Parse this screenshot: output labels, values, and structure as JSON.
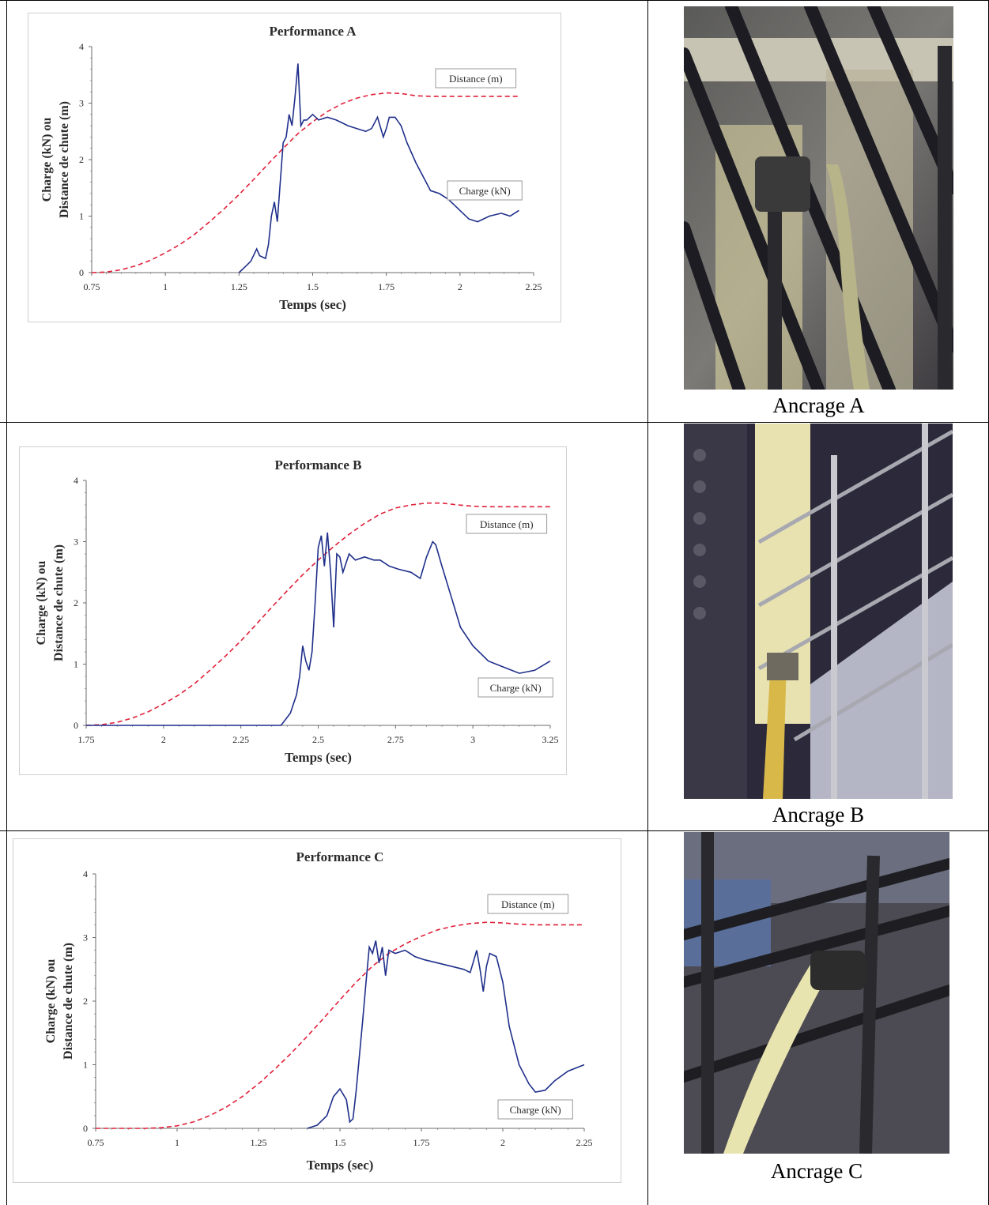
{
  "colors": {
    "charge": "#1f2f8a",
    "distance": "#e0203a",
    "axis": "#6b6b6b",
    "text": "#2a2a2a"
  },
  "photos": [
    {
      "caption": "Ancrage A"
    },
    {
      "caption": "Ancrage B"
    },
    {
      "caption": "Ancrage C"
    }
  ],
  "chart_data": [
    {
      "type": "line",
      "title": "Performance A",
      "xlabel": "Temps (sec)",
      "ylabel": [
        "Charge (kN) ou",
        "Distance de chute (m)"
      ],
      "xlim": [
        0.75,
        2.25
      ],
      "ylim": [
        0,
        4
      ],
      "xticks": [
        0.75,
        1,
        1.25,
        1.5,
        1.75,
        2,
        2.25
      ],
      "xticklabels": [
        "0.75",
        "1",
        "1.25",
        "1.5",
        "1.75",
        "2",
        "2.25"
      ],
      "yticks": [
        0,
        1,
        2,
        3,
        4
      ],
      "yticklabels": [
        "0",
        "1",
        "2",
        "3",
        "4"
      ],
      "legend_labels": [
        "Distance (m)",
        "Charge (kN)"
      ],
      "series": [
        {
          "name": "Distance (m)",
          "style": "dashed",
          "x": [
            0.75,
            0.8,
            0.85,
            0.9,
            0.95,
            1.0,
            1.05,
            1.1,
            1.15,
            1.2,
            1.25,
            1.3,
            1.35,
            1.4,
            1.45,
            1.5,
            1.55,
            1.6,
            1.65,
            1.7,
            1.75,
            1.8,
            1.85,
            1.9,
            1.95,
            2.0,
            2.05,
            2.1,
            2.15,
            2.2
          ],
          "y": [
            0,
            0.01,
            0.05,
            0.12,
            0.22,
            0.35,
            0.5,
            0.68,
            0.9,
            1.13,
            1.38,
            1.65,
            1.93,
            2.2,
            2.46,
            2.67,
            2.85,
            2.99,
            3.09,
            3.15,
            3.18,
            3.17,
            3.13,
            3.12,
            3.12,
            3.12,
            3.12,
            3.12,
            3.12,
            3.12
          ]
        },
        {
          "name": "Charge (kN)",
          "style": "solid",
          "x": [
            1.25,
            1.27,
            1.29,
            1.31,
            1.32,
            1.34,
            1.35,
            1.36,
            1.37,
            1.38,
            1.39,
            1.4,
            1.41,
            1.42,
            1.43,
            1.44,
            1.45,
            1.46,
            1.47,
            1.48,
            1.5,
            1.52,
            1.55,
            1.58,
            1.6,
            1.62,
            1.65,
            1.68,
            1.7,
            1.72,
            1.74,
            1.75,
            1.76,
            1.78,
            1.8,
            1.82,
            1.85,
            1.88,
            1.9,
            1.93,
            1.96,
            1.98,
            2.0,
            2.03,
            2.06,
            2.1,
            2.14,
            2.17,
            2.2
          ],
          "y": [
            0,
            0.1,
            0.2,
            0.42,
            0.3,
            0.25,
            0.5,
            1.0,
            1.25,
            0.9,
            1.6,
            2.3,
            2.4,
            2.8,
            2.6,
            3.1,
            3.7,
            2.6,
            2.7,
            2.7,
            2.8,
            2.7,
            2.75,
            2.7,
            2.65,
            2.6,
            2.55,
            2.5,
            2.55,
            2.75,
            2.4,
            2.55,
            2.75,
            2.75,
            2.6,
            2.3,
            1.95,
            1.65,
            1.45,
            1.4,
            1.3,
            1.2,
            1.1,
            0.95,
            0.9,
            1.0,
            1.05,
            1.0,
            1.1
          ]
        }
      ]
    },
    {
      "type": "line",
      "title": "Performance B",
      "xlabel": "Temps (sec)",
      "ylabel": [
        "Charge (kN) ou",
        "Distance de chute (m)"
      ],
      "xlim": [
        1.75,
        3.25
      ],
      "ylim": [
        0,
        4
      ],
      "xticks": [
        1.75,
        2,
        2.25,
        2.5,
        2.75,
        3,
        3.25
      ],
      "xticklabels": [
        "1.75",
        "2",
        "2.25",
        "2.5",
        "2.75",
        "3",
        "3.25"
      ],
      "yticks": [
        0,
        1,
        2,
        3,
        4
      ],
      "yticklabels": [
        "0",
        "1",
        "2",
        "3",
        "4"
      ],
      "legend_labels": [
        "Distance (m)",
        "Charge (kN)"
      ],
      "series": [
        {
          "name": "Distance (m)",
          "style": "dashed",
          "x": [
            1.75,
            1.8,
            1.85,
            1.9,
            1.95,
            2.0,
            2.05,
            2.1,
            2.15,
            2.2,
            2.25,
            2.3,
            2.35,
            2.4,
            2.45,
            2.5,
            2.55,
            2.6,
            2.65,
            2.7,
            2.75,
            2.8,
            2.85,
            2.9,
            2.95,
            3.0,
            3.05,
            3.1,
            3.15,
            3.2,
            3.25
          ],
          "y": [
            0,
            0.01,
            0.05,
            0.12,
            0.22,
            0.35,
            0.5,
            0.68,
            0.9,
            1.13,
            1.38,
            1.65,
            1.93,
            2.2,
            2.46,
            2.7,
            2.92,
            3.12,
            3.3,
            3.45,
            3.55,
            3.6,
            3.63,
            3.63,
            3.6,
            3.58,
            3.57,
            3.57,
            3.57,
            3.57,
            3.57
          ]
        },
        {
          "name": "Charge (kN)",
          "style": "solid",
          "x": [
            1.75,
            2.0,
            2.2,
            2.3,
            2.38,
            2.41,
            2.43,
            2.44,
            2.45,
            2.46,
            2.47,
            2.48,
            2.49,
            2.5,
            2.51,
            2.52,
            2.53,
            2.54,
            2.55,
            2.56,
            2.57,
            2.58,
            2.6,
            2.62,
            2.65,
            2.68,
            2.7,
            2.73,
            2.76,
            2.8,
            2.83,
            2.85,
            2.87,
            2.88,
            2.9,
            2.93,
            2.96,
            3.0,
            3.05,
            3.1,
            3.15,
            3.2,
            3.25
          ],
          "y": [
            0,
            0,
            0,
            0,
            0,
            0.2,
            0.5,
            0.8,
            1.3,
            1.05,
            0.9,
            1.2,
            2.0,
            2.9,
            3.1,
            2.6,
            3.15,
            2.5,
            1.6,
            2.8,
            2.75,
            2.5,
            2.8,
            2.7,
            2.75,
            2.7,
            2.7,
            2.6,
            2.55,
            2.5,
            2.4,
            2.75,
            3.0,
            2.95,
            2.6,
            2.1,
            1.6,
            1.3,
            1.05,
            0.95,
            0.85,
            0.9,
            1.05
          ]
        }
      ]
    },
    {
      "type": "line",
      "title": "Performance C",
      "xlabel": "Temps (sec)",
      "ylabel": [
        "Charge (kN) ou",
        "Distance de chute (m)"
      ],
      "xlim": [
        0.75,
        2.25
      ],
      "ylim": [
        0,
        4
      ],
      "xticks": [
        0.75,
        1,
        1.25,
        1.5,
        1.75,
        2,
        2.25
      ],
      "xticklabels": [
        "0.75",
        "1",
        "1.25",
        "1.5",
        "1.75",
        "2",
        "2.25"
      ],
      "yticks": [
        0,
        1,
        2,
        3,
        4
      ],
      "yticklabels": [
        "0",
        "1",
        "2",
        "3",
        "4"
      ],
      "legend_labels": [
        "Distance (m)",
        "Charge (kN)"
      ],
      "series": [
        {
          "name": "Distance (m)",
          "style": "dashed",
          "x": [
            0.75,
            0.8,
            0.85,
            0.9,
            0.95,
            1.0,
            1.05,
            1.1,
            1.15,
            1.2,
            1.25,
            1.3,
            1.35,
            1.4,
            1.45,
            1.5,
            1.55,
            1.6,
            1.65,
            1.7,
            1.75,
            1.8,
            1.85,
            1.9,
            1.95,
            2.0,
            2.05,
            2.1,
            2.15,
            2.2,
            2.25
          ],
          "y": [
            0,
            0,
            0,
            0,
            0.01,
            0.04,
            0.1,
            0.2,
            0.33,
            0.5,
            0.7,
            0.93,
            1.18,
            1.45,
            1.73,
            2.02,
            2.3,
            2.55,
            2.75,
            2.9,
            3.02,
            3.12,
            3.18,
            3.22,
            3.24,
            3.23,
            3.21,
            3.2,
            3.2,
            3.2,
            3.2
          ]
        },
        {
          "name": "Charge (kN)",
          "style": "solid",
          "x": [
            1.4,
            1.43,
            1.46,
            1.48,
            1.5,
            1.52,
            1.53,
            1.54,
            1.55,
            1.57,
            1.58,
            1.59,
            1.6,
            1.61,
            1.62,
            1.63,
            1.64,
            1.65,
            1.67,
            1.7,
            1.73,
            1.76,
            1.8,
            1.84,
            1.88,
            1.9,
            1.92,
            1.93,
            1.94,
            1.95,
            1.96,
            1.98,
            2.0,
            2.02,
            2.05,
            2.08,
            2.1,
            2.13,
            2.16,
            2.2,
            2.25
          ],
          "y": [
            0,
            0.05,
            0.2,
            0.5,
            0.62,
            0.45,
            0.1,
            0.15,
            0.6,
            1.7,
            2.3,
            2.85,
            2.75,
            2.95,
            2.6,
            2.85,
            2.4,
            2.8,
            2.75,
            2.8,
            2.7,
            2.65,
            2.6,
            2.55,
            2.5,
            2.45,
            2.8,
            2.5,
            2.15,
            2.55,
            2.75,
            2.7,
            2.3,
            1.6,
            1.0,
            0.7,
            0.57,
            0.6,
            0.75,
            0.9,
            1.0
          ]
        }
      ]
    }
  ]
}
